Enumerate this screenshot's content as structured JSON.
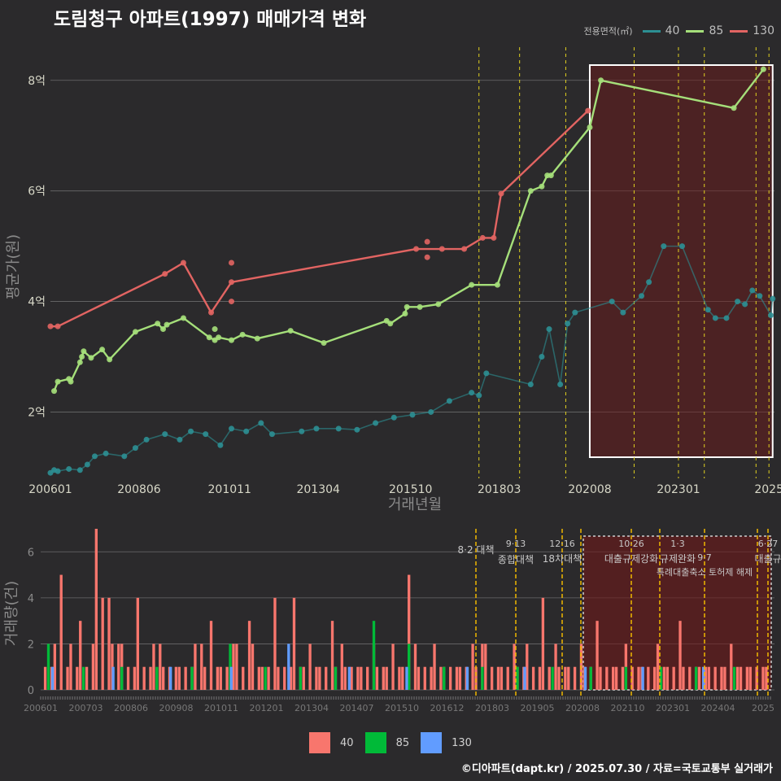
{
  "title": "도림청구 아파트(1997) 매매가격 변화",
  "caption": "©디아파트(dapt.kr) / 2025.07.30 / 자료=국토교통부 실거래가",
  "legend_top": {
    "title": "전용면적(㎡)",
    "items": [
      {
        "label": "40",
        "color": "#2c8f93"
      },
      {
        "label": "85",
        "color": "#a5df7a"
      },
      {
        "label": "130",
        "color": "#e26462"
      }
    ]
  },
  "legend_bottom": {
    "items": [
      {
        "label": "40",
        "color": "#f8766d"
      },
      {
        "label": "85",
        "color": "#00ba38"
      },
      {
        "label": "130",
        "color": "#619cff"
      }
    ]
  },
  "chart_data": [
    {
      "type": "line",
      "title": "도림청구 아파트(1997) 매매가격 변화",
      "xlabel": "거래년월",
      "ylabel": "평균가(원)",
      "x_ticks": [
        "200601",
        "200806",
        "201011",
        "201304",
        "201510",
        "201803",
        "202008",
        "202301",
        "2025"
      ],
      "y_ticks": [
        "2억",
        "4억",
        "6억",
        "8억"
      ],
      "xlim": [
        2006.0,
        2025.6
      ],
      "ylim": [
        0.8,
        8.6
      ],
      "y_unit": "억",
      "grid": true,
      "series": [
        {
          "name": "130",
          "color": "#e26462",
          "points": [
            [
              2006.0,
              3.55
            ],
            [
              2006.2,
              3.55
            ],
            [
              2009.1,
              4.5
            ],
            [
              2009.6,
              4.7
            ],
            [
              2010.35,
              3.8
            ],
            [
              2010.9,
              4.35
            ],
            [
              2015.9,
              4.95
            ],
            [
              2016.6,
              4.95
            ],
            [
              2017.2,
              4.95
            ],
            [
              2017.7,
              5.15
            ],
            [
              2018.0,
              5.15
            ],
            [
              2018.2,
              5.95
            ],
            [
              2020.55,
              7.45
            ]
          ],
          "extra_points": [
            [
              2010.9,
              4.7
            ],
            [
              2010.9,
              4.0
            ],
            [
              2016.2,
              5.08
            ],
            [
              2016.2,
              4.8
            ]
          ]
        },
        {
          "name": "85",
          "color": "#a5df7a",
          "points": [
            [
              2006.1,
              2.38
            ],
            [
              2006.2,
              2.55
            ],
            [
              2006.5,
              2.6
            ],
            [
              2006.55,
              2.55
            ],
            [
              2006.8,
              2.9
            ],
            [
              2006.85,
              3.0
            ],
            [
              2006.9,
              3.1
            ],
            [
              2007.1,
              2.98
            ],
            [
              2007.4,
              3.13
            ],
            [
              2007.6,
              2.95
            ],
            [
              2008.3,
              3.45
            ],
            [
              2008.9,
              3.6
            ],
            [
              2009.05,
              3.5
            ],
            [
              2009.15,
              3.58
            ],
            [
              2009.6,
              3.7
            ],
            [
              2010.3,
              3.35
            ],
            [
              2010.45,
              3.3
            ],
            [
              2010.55,
              3.35
            ],
            [
              2010.9,
              3.3
            ],
            [
              2011.2,
              3.4
            ],
            [
              2011.6,
              3.33
            ],
            [
              2012.5,
              3.47
            ],
            [
              2013.4,
              3.25
            ],
            [
              2015.1,
              3.65
            ],
            [
              2015.2,
              3.6
            ],
            [
              2015.6,
              3.78
            ],
            [
              2015.65,
              3.9
            ],
            [
              2016.0,
              3.9
            ],
            [
              2016.5,
              3.95
            ],
            [
              2017.4,
              4.3
            ],
            [
              2018.1,
              4.3
            ],
            [
              2019.0,
              6.0
            ],
            [
              2019.3,
              6.08
            ],
            [
              2019.45,
              6.28
            ],
            [
              2019.55,
              6.28
            ],
            [
              2020.6,
              7.15
            ],
            [
              2020.9,
              8.0
            ],
            [
              2024.5,
              7.5
            ],
            [
              2025.3,
              8.2
            ]
          ],
          "extra_points": [
            [
              2010.45,
              3.5
            ]
          ]
        },
        {
          "name": "40",
          "color": "#2c8f93",
          "points": [
            [
              2006.0,
              0.9
            ],
            [
              2006.1,
              0.95
            ],
            [
              2006.2,
              0.93
            ],
            [
              2006.5,
              0.97
            ],
            [
              2006.8,
              0.95
            ],
            [
              2007.0,
              1.05
            ],
            [
              2007.2,
              1.2
            ],
            [
              2007.5,
              1.25
            ],
            [
              2008.0,
              1.2
            ],
            [
              2008.3,
              1.35
            ],
            [
              2008.6,
              1.5
            ],
            [
              2009.1,
              1.6
            ],
            [
              2009.5,
              1.5
            ],
            [
              2009.8,
              1.65
            ],
            [
              2010.2,
              1.6
            ],
            [
              2010.6,
              1.4
            ],
            [
              2010.9,
              1.7
            ],
            [
              2011.3,
              1.65
            ],
            [
              2011.7,
              1.8
            ],
            [
              2012.0,
              1.6
            ],
            [
              2012.8,
              1.65
            ],
            [
              2013.2,
              1.7
            ],
            [
              2013.8,
              1.7
            ],
            [
              2014.3,
              1.68
            ],
            [
              2014.8,
              1.8
            ],
            [
              2015.3,
              1.9
            ],
            [
              2015.8,
              1.95
            ],
            [
              2016.3,
              2.0
            ],
            [
              2016.8,
              2.2
            ],
            [
              2017.4,
              2.35
            ],
            [
              2017.6,
              2.3
            ],
            [
              2017.8,
              2.7
            ],
            [
              2019.0,
              2.5
            ],
            [
              2019.3,
              3.0
            ],
            [
              2019.5,
              3.5
            ],
            [
              2019.8,
              2.5
            ],
            [
              2020.0,
              3.6
            ],
            [
              2020.2,
              3.8
            ],
            [
              2021.2,
              4.0
            ],
            [
              2021.5,
              3.8
            ],
            [
              2022.0,
              4.1
            ],
            [
              2022.2,
              4.35
            ],
            [
              2022.6,
              5.0
            ],
            [
              2023.1,
              5.0
            ],
            [
              2023.8,
              3.85
            ],
            [
              2024.0,
              3.7
            ],
            [
              2024.3,
              3.7
            ],
            [
              2024.6,
              4.0
            ],
            [
              2024.8,
              3.95
            ],
            [
              2025.0,
              4.2
            ],
            [
              2025.2,
              4.1
            ],
            [
              2025.5,
              3.75
            ],
            [
              2025.55,
              4.05
            ]
          ]
        }
      ],
      "policy_lines_x": [
        2017.6,
        2018.7,
        2019.95,
        2021.8,
        2023.0,
        2023.7,
        2025.1,
        2025.45
      ],
      "highlight_x": [
        2020.6,
        2025.55
      ]
    },
    {
      "type": "bar",
      "ylabel": "거래량(건)",
      "x_ticks": [
        "200601",
        "200703",
        "200806",
        "200908",
        "201011",
        "201201",
        "201304",
        "201407",
        "201510",
        "201612",
        "201803",
        "201905",
        "202008",
        "202110",
        "202301",
        "202404",
        "2025"
      ],
      "y_ticks": [
        "0",
        "2",
        "4",
        "6"
      ],
      "ylim": [
        0,
        7
      ],
      "annotations": [
        {
          "date": "8·2 대책",
          "label": ""
        },
        {
          "date": "9·13",
          "label": "종합대책"
        },
        {
          "date": "12·16",
          "label": "18차대책"
        },
        {
          "date": "10·26",
          "label": "대출규제강화"
        },
        {
          "date": "1·3",
          "label": "규제완화"
        },
        {
          "date": "9·7",
          "label": "특례대출축소 토허제 해제"
        },
        {
          "date": "6·27",
          "label": "대출규"
        }
      ],
      "series": [
        {
          "name": "40",
          "color": "#f8766d",
          "values": [
            1,
            1,
            2,
            5,
            1,
            2,
            1,
            3,
            1,
            2,
            7,
            4,
            4,
            2,
            2,
            2,
            1,
            1,
            4,
            1,
            1,
            2,
            2,
            1,
            1,
            1,
            1,
            1,
            1,
            2,
            2,
            1,
            3,
            1,
            1,
            1,
            2,
            2,
            1,
            3,
            2,
            1,
            1,
            1,
            4,
            1,
            1,
            1,
            4,
            1,
            1,
            2,
            1,
            1,
            1,
            3,
            1,
            2,
            1,
            1,
            1,
            1,
            1,
            2,
            1,
            1,
            1,
            2,
            1,
            1,
            5,
            2,
            1,
            1,
            1,
            2,
            1,
            1,
            1,
            1,
            1,
            1,
            2,
            1,
            2,
            2,
            1,
            1,
            1,
            1,
            2,
            1,
            1,
            2,
            1,
            1,
            4,
            1,
            2,
            1,
            1,
            1,
            1,
            2,
            1,
            1,
            3,
            1,
            1,
            1,
            1,
            1,
            2,
            1,
            1,
            1,
            1,
            1,
            2,
            1,
            1,
            1,
            3,
            1,
            1,
            1,
            1,
            1,
            1,
            1,
            1,
            1,
            2,
            1,
            1,
            1,
            1,
            1,
            1,
            1
          ]
        },
        {
          "name": "85",
          "color": "#00ba38",
          "values": [
            2,
            1,
            1,
            1,
            1,
            2,
            1,
            1,
            1,
            3,
            2,
            1,
            1,
            1,
            1,
            1,
            1,
            1,
            1,
            1
          ]
        },
        {
          "name": "130",
          "color": "#619cff",
          "values": [
            1,
            1,
            1,
            1,
            2,
            1,
            1,
            1,
            1,
            1,
            1,
            1
          ]
        }
      ]
    }
  ]
}
